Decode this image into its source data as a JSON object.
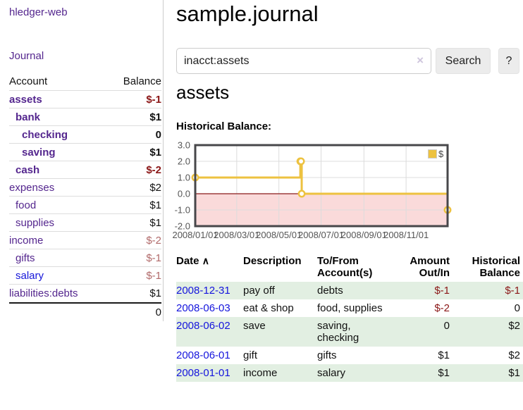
{
  "app": {
    "brand": "hledger-web"
  },
  "nav": {
    "journal_label": "Journal"
  },
  "sidebar": {
    "account_header": "Account",
    "balance_header": "Balance",
    "accounts": [
      {
        "name": "assets",
        "balance": "$-1",
        "depth": 1,
        "bold": true,
        "name_color": "purple",
        "balance_color": "negative"
      },
      {
        "name": "bank",
        "balance": "$1",
        "depth": 2,
        "bold": true,
        "name_color": "purple",
        "balance_color": "normal"
      },
      {
        "name": "checking",
        "balance": "0",
        "depth": 3,
        "bold": true,
        "name_color": "purple",
        "balance_color": "normal"
      },
      {
        "name": "saving",
        "balance": "$1",
        "depth": 3,
        "bold": true,
        "name_color": "purple",
        "balance_color": "normal"
      },
      {
        "name": "cash",
        "balance": "$-2",
        "depth": 2,
        "bold": true,
        "name_color": "purple",
        "balance_color": "negative"
      },
      {
        "name": "expenses",
        "balance": "$2",
        "depth": 1,
        "bold": false,
        "name_color": "purple",
        "balance_color": "normal"
      },
      {
        "name": "food",
        "balance": "$1",
        "depth": 2,
        "bold": false,
        "name_color": "purple",
        "balance_color": "normal"
      },
      {
        "name": "supplies",
        "balance": "$1",
        "depth": 2,
        "bold": false,
        "name_color": "purple",
        "balance_color": "normal"
      },
      {
        "name": "income",
        "balance": "$-2",
        "depth": 1,
        "bold": false,
        "name_color": "purple",
        "balance_color": "negative-muted"
      },
      {
        "name": "gifts",
        "balance": "$-1",
        "depth": 2,
        "bold": false,
        "name_color": "purple",
        "balance_color": "negative-muted"
      },
      {
        "name": "salary",
        "balance": "$-1",
        "depth": 2,
        "bold": false,
        "name_color": "blue",
        "balance_color": "negative-muted"
      },
      {
        "name": "liabilities:debts",
        "balance": "$1",
        "depth": 1,
        "bold": false,
        "name_color": "purple",
        "balance_color": "normal"
      }
    ],
    "total": "0"
  },
  "main": {
    "title": "sample.journal",
    "search": {
      "value": "inacct:assets",
      "clear_icon": "×",
      "search_button": "Search",
      "help_button": "?"
    },
    "account_title": "assets",
    "chart_title": "Historical Balance:"
  },
  "chart_data": {
    "type": "line",
    "title": "Historical Balance:",
    "step": true,
    "legend": {
      "label": "$",
      "position": "top-right"
    },
    "x_domain_days": [
      0,
      365
    ],
    "points": [
      {
        "date": "2008-01-01",
        "day": 0,
        "value": 1
      },
      {
        "date": "2008-06-01",
        "day": 152,
        "value": 2
      },
      {
        "date": "2008-06-02",
        "day": 153,
        "value": 2
      },
      {
        "date": "2008-06-03",
        "day": 154,
        "value": 0
      },
      {
        "date": "2008-12-31",
        "day": 365,
        "value": -1
      }
    ],
    "ylim": [
      -2,
      3
    ],
    "yticks": [
      {
        "label": "3.0",
        "value": 3
      },
      {
        "label": "2.0",
        "value": 2
      },
      {
        "label": "1.0",
        "value": 1
      },
      {
        "label": "0.0",
        "value": 0
      },
      {
        "label": "-1.0",
        "value": -1
      },
      {
        "label": "-2.0",
        "value": -2
      }
    ],
    "xticks": [
      {
        "label": "2008/01/01",
        "day": 0
      },
      {
        "label": "2008/03/01",
        "day": 60
      },
      {
        "label": "2008/05/01",
        "day": 121
      },
      {
        "label": "2008/07/01",
        "day": 182
      },
      {
        "label": "2008/09/01",
        "day": 244
      },
      {
        "label": "2008/11/01",
        "day": 305
      }
    ],
    "colors": {
      "line": "#edc240",
      "marker_fill": "#ffffff",
      "negative_region": "#fadada",
      "zero_line": "#8b1a1a",
      "grid": "#dcdcdc",
      "border": "#47474a",
      "tick_text": "#555555"
    }
  },
  "table": {
    "headers": {
      "date": "Date",
      "sort_icon": "∧",
      "description": "Description",
      "accounts": "To/From Account(s)",
      "amount": "Amount Out/In",
      "balance": "Historical Balance"
    },
    "rows": [
      {
        "date": "2008-12-31",
        "description": "pay off",
        "accounts": "debts",
        "amount": "$-1",
        "amount_negative": true,
        "balance": "$-1",
        "balance_negative": true,
        "shaded": true
      },
      {
        "date": "2008-06-03",
        "description": "eat & shop",
        "accounts": "food, supplies",
        "amount": "$-2",
        "amount_negative": true,
        "balance": "0",
        "balance_negative": false,
        "shaded": false
      },
      {
        "date": "2008-06-02",
        "description": "save",
        "accounts": "saving, checking",
        "amount": "0",
        "amount_negative": false,
        "balance": "$2",
        "balance_negative": false,
        "shaded": true
      },
      {
        "date": "2008-06-01",
        "description": "gift",
        "accounts": "gifts",
        "amount": "$1",
        "amount_negative": false,
        "balance": "$2",
        "balance_negative": false,
        "shaded": false
      },
      {
        "date": "2008-01-01",
        "description": "income",
        "accounts": "salary",
        "amount": "$1",
        "amount_negative": false,
        "balance": "$1",
        "balance_negative": false,
        "shaded": true
      }
    ]
  }
}
